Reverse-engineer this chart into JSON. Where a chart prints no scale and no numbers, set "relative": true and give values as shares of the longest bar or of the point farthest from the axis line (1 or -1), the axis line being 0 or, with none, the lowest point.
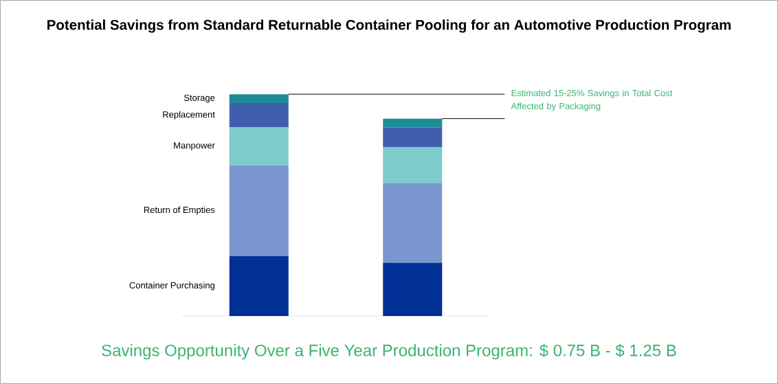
{
  "chart_data": {
    "type": "bar",
    "stacked": true,
    "relative": true,
    "title": "Potential Savings from Standard Returnable Container Pooling for an Automotive Production Program",
    "categories": [
      null,
      null
    ],
    "series": [
      {
        "name": "Container Purchasing",
        "color": "#002f96",
        "values": [
          0.27,
          0.24
        ]
      },
      {
        "name": "Return of Empties",
        "color": "#7b96cf",
        "values": [
          0.41,
          0.36
        ]
      },
      {
        "name": "Manpower",
        "color": "#7ecbcb",
        "values": [
          0.17,
          0.16
        ]
      },
      {
        "name": "Replacement",
        "color": "#3f5fae",
        "values": [
          0.11,
          0.09
        ]
      },
      {
        "name": "Storage",
        "color": "#1e8c96",
        "values": [
          0.04,
          0.04
        ]
      }
    ],
    "ref_lines": [
      {
        "axis": "y",
        "value": 1.0,
        "color": "#000000"
      },
      {
        "axis": "y",
        "value": 0.89,
        "color": "#000000"
      }
    ],
    "annotations": [
      "Estimated 15-25% Savings in Total Cost Affected by Packaging",
      "Savings Opportunity Over a Five Year Production Program: $ 0.75 B - $ 1.25 B"
    ]
  }
}
